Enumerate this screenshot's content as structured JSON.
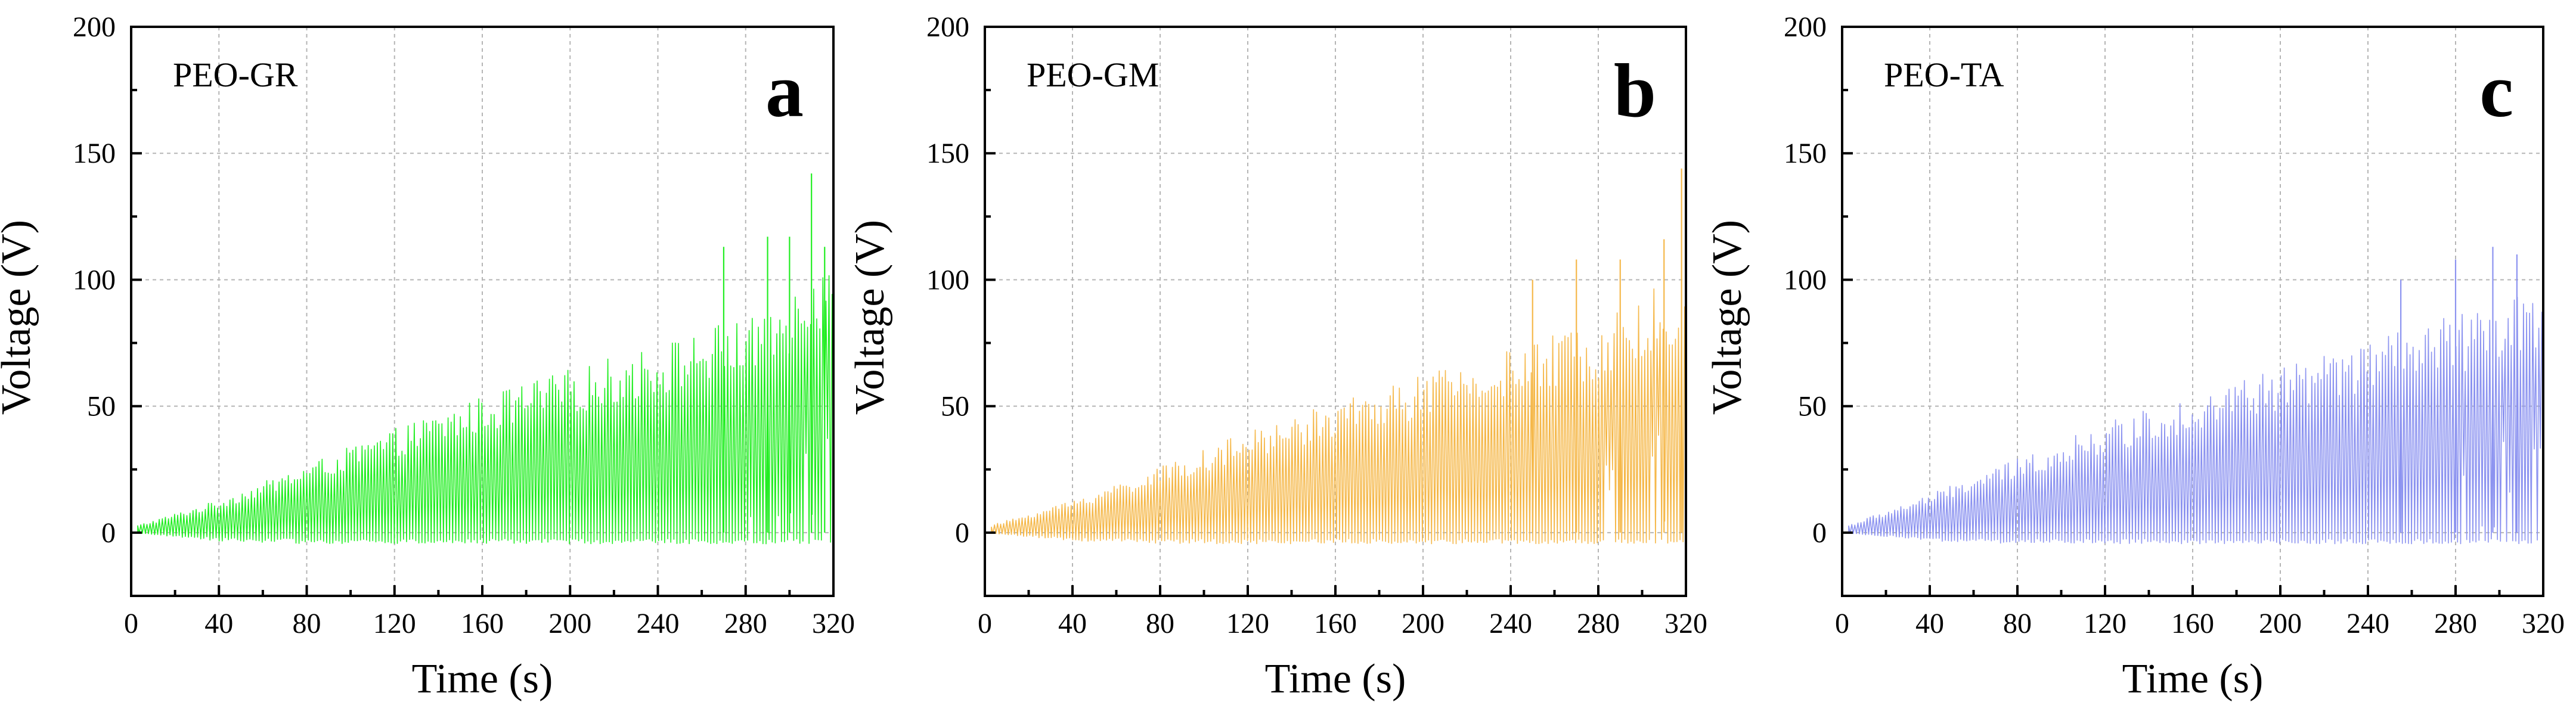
{
  "chart_data": [
    {
      "type": "line",
      "panel_letter": "a",
      "series_label": "PEO-GR",
      "color": "#22ee22",
      "xlabel": "Time (s)",
      "ylabel": "Voltage (V)",
      "xlim": [
        0,
        320
      ],
      "ylim": [
        -25,
        200
      ],
      "xticks": [
        0,
        40,
        80,
        120,
        160,
        200,
        240,
        280,
        320
      ],
      "yticks": [
        0,
        50,
        100,
        150,
        200
      ],
      "grid": true,
      "description": "Oscillating voltage trace; peak envelope rises roughly linearly",
      "envelope": {
        "time": [
          0,
          40,
          80,
          120,
          160,
          200,
          240,
          280,
          300,
          310,
          320
        ],
        "upper": [
          2,
          12,
          25,
          38,
          50,
          60,
          69,
          80,
          90,
          100,
          95
        ],
        "lower": [
          0,
          -3,
          -4,
          -4,
          -4,
          -4,
          -4,
          -4,
          -4,
          -4,
          -4
        ]
      },
      "spikes": [
        {
          "time": 270,
          "value": 113
        },
        {
          "time": 290,
          "value": 117
        },
        {
          "time": 300,
          "value": 117
        },
        {
          "time": 310,
          "value": 142
        },
        {
          "time": 316,
          "value": 113
        }
      ],
      "max_value": 142
    },
    {
      "type": "line",
      "panel_letter": "b",
      "series_label": "PEO-GM",
      "color": "#f5b84a",
      "xlabel": "Time (s)",
      "ylabel": "Voltage (V)",
      "xlim": [
        0,
        320
      ],
      "ylim": [
        -25,
        200
      ],
      "xticks": [
        0,
        40,
        80,
        120,
        160,
        200,
        240,
        280,
        320
      ],
      "yticks": [
        0,
        50,
        100,
        150,
        200
      ],
      "grid": true,
      "description": "Oscillating voltage trace; peak envelope rises roughly linearly",
      "envelope": {
        "time": [
          0,
          40,
          80,
          120,
          160,
          200,
          240,
          280,
          300,
          310,
          320
        ],
        "upper": [
          2,
          12,
          24,
          37,
          48,
          58,
          67,
          78,
          85,
          95,
          90
        ],
        "lower": [
          0,
          -3,
          -4,
          -4,
          -4,
          -4,
          -4,
          -4,
          -4,
          -4,
          -4
        ]
      },
      "spikes": [
        {
          "time": 250,
          "value": 100
        },
        {
          "time": 270,
          "value": 108
        },
        {
          "time": 290,
          "value": 108
        },
        {
          "time": 310,
          "value": 116
        },
        {
          "time": 318,
          "value": 144
        }
      ],
      "max_value": 144
    },
    {
      "type": "line",
      "panel_letter": "c",
      "series_label": "PEO-TA",
      "color": "#8c93f0",
      "xlabel": "Time (s)",
      "ylabel": "Voltage (V)",
      "xlim": [
        0,
        320
      ],
      "ylim": [
        -25,
        200
      ],
      "xticks": [
        0,
        40,
        80,
        120,
        160,
        200,
        240,
        280,
        320
      ],
      "yticks": [
        0,
        50,
        100,
        150,
        200
      ],
      "grid": true,
      "description": "Oscillating voltage trace; peak envelope rises roughly linearly",
      "envelope": {
        "time": [
          0,
          40,
          80,
          120,
          160,
          200,
          240,
          280,
          300,
          310,
          320
        ],
        "upper": [
          2,
          14,
          27,
          40,
          51,
          61,
          70,
          80,
          86,
          92,
          88
        ],
        "lower": [
          0,
          -3,
          -4,
          -4,
          -4,
          -4,
          -4,
          -4,
          -4,
          -4,
          -4
        ]
      },
      "spikes": [
        {
          "time": 255,
          "value": 100
        },
        {
          "time": 280,
          "value": 108
        },
        {
          "time": 297,
          "value": 113
        },
        {
          "time": 308,
          "value": 110
        }
      ],
      "max_value": 113
    }
  ]
}
